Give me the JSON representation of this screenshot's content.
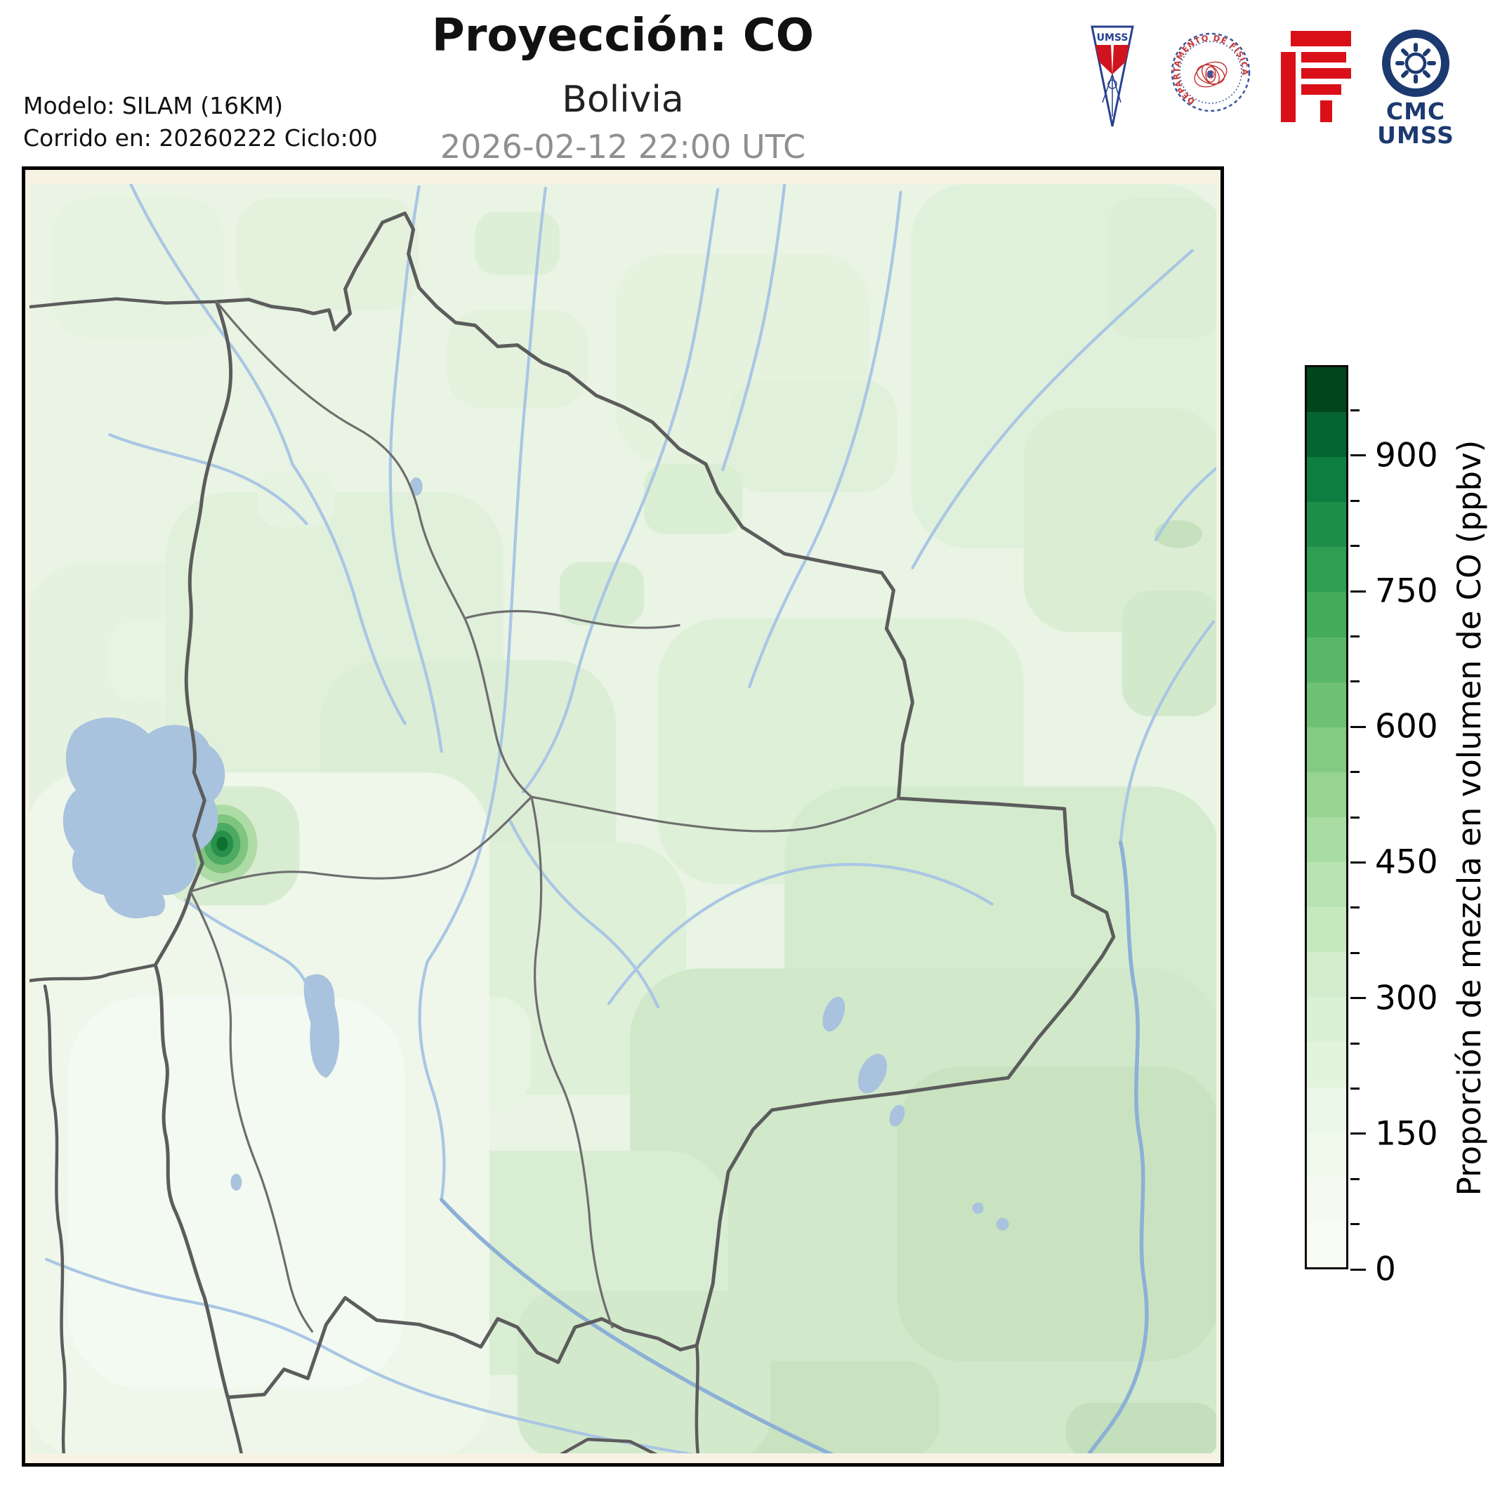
{
  "header": {
    "title": "Proyección: CO",
    "subtitle": "Bolivia",
    "datetime": "2026-02-12 22:00 UTC",
    "model_line1": "Modelo: SILAM (16KM)",
    "model_line2": "Corrido en: 20260222 Ciclo:00"
  },
  "logos": {
    "umss_pennant_text": "UMSS",
    "fisica_seal_text": "DEPARTAMENTO DE FÍSICA",
    "cmc_line1": "CMC",
    "cmc_line2": "UMSS"
  },
  "colorbar": {
    "label": "Proporción de mezcla en volumen de CO (ppbv)",
    "unit": "ppbv",
    "min": 0,
    "max": 1000,
    "major_ticks": [
      900,
      750,
      600,
      450,
      300,
      150,
      0
    ],
    "minor_tick_step": 50,
    "segment_colors": [
      "#f7fcf5",
      "#f4faf1",
      "#eff9ec",
      "#eaf7e6",
      "#e3f4de",
      "#dbf1d6",
      "#d1edcb",
      "#c6e8bf",
      "#b8e3b2",
      "#a9dca3",
      "#97d492",
      "#83cb82",
      "#6ec173",
      "#58b768",
      "#42ab5c",
      "#2f9e53",
      "#1e8f4a",
      "#0d7e3f",
      "#046432",
      "#00451c"
    ]
  },
  "map": {
    "region": "Bolivia",
    "margin_color": "#f6f3e4",
    "field_base_color": "#e9f4e4",
    "river_color": "#a9c6e4",
    "major_river_color": "#8cb0d6",
    "lake_color": "#a9c2dd",
    "country_border_color": "#5c5c5c",
    "department_border_color": "#6e6e6e",
    "hotspot_core_color": "#10702f"
  }
}
